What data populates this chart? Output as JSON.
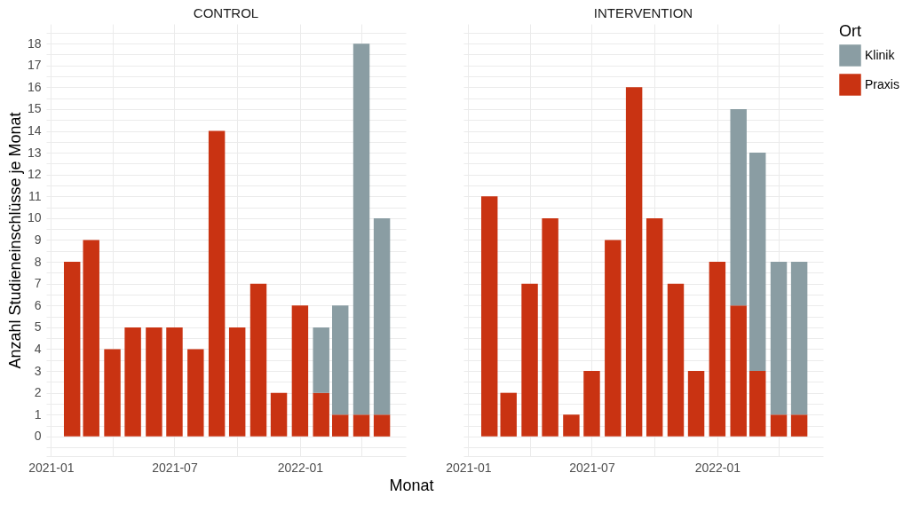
{
  "chart_data": [
    {
      "type": "bar",
      "title": "CONTROL",
      "xlabel": "Monat",
      "ylabel": "Anzahl Studieneinschlüsse je Monat",
      "stacked": true,
      "grid": true,
      "x": [
        "2021-02",
        "2021-03",
        "2021-04",
        "2021-05",
        "2021-06",
        "2021-07",
        "2021-08",
        "2021-09",
        "2021-10",
        "2021-11",
        "2021-12",
        "2022-01",
        "2022-02",
        "2022-03",
        "2022-04",
        "2022-05"
      ],
      "xlim": [
        "2020-12-25",
        "2022-06-05"
      ],
      "xticks": [
        "2021-01",
        {
          "value": "2021-04",
          "label": null
        },
        "2021-07",
        {
          "value": "2021-10",
          "label": null
        },
        "2022-01",
        {
          "value": "2022-04",
          "label": null
        }
      ],
      "ylim": [
        -0.9,
        18.9
      ],
      "yticks": [
        {
          "value": -0.5,
          "label": null
        },
        0,
        {
          "value": 0.5,
          "label": null
        },
        1,
        {
          "value": 1.5,
          "label": null
        },
        2,
        {
          "value": 2.5,
          "label": null
        },
        3,
        {
          "value": 3.5,
          "label": null
        },
        4,
        {
          "value": 4.5,
          "label": null
        },
        5,
        {
          "value": 5.5,
          "label": null
        },
        6,
        {
          "value": 6.5,
          "label": null
        },
        7,
        {
          "value": 7.5,
          "label": null
        },
        8,
        {
          "value": 8.5,
          "label": null
        },
        9,
        {
          "value": 9.5,
          "label": null
        },
        10,
        {
          "value": 10.5,
          "label": null
        },
        11,
        {
          "value": 11.5,
          "label": null
        },
        12,
        {
          "value": 12.5,
          "label": null
        },
        13,
        {
          "value": 13.5,
          "label": null
        },
        14,
        {
          "value": 14.5,
          "label": null
        },
        15,
        {
          "value": 15.5,
          "label": null
        },
        16,
        {
          "value": 16.5,
          "label": null
        },
        17,
        {
          "value": 17.5,
          "label": null
        },
        18,
        {
          "value": 18.5,
          "label": null
        }
      ],
      "series": [
        {
          "color": "#c93312",
          "values": [
            8,
            9,
            4,
            5,
            5,
            5,
            4,
            14,
            5,
            7,
            2,
            6,
            2,
            1,
            1,
            1
          ]
        },
        {
          "color": "#8a9da3",
          "values": [
            null,
            null,
            null,
            null,
            null,
            null,
            null,
            null,
            null,
            null,
            null,
            null,
            3,
            5,
            17,
            9
          ]
        }
      ]
    },
    {
      "type": "bar",
      "title": "INTERVENTION",
      "stacked": true,
      "grid": true,
      "tick_labels": "x",
      "legend": "right",
      "legend_title": "Ort",
      "x": [
        "2021-02",
        "2021-03",
        "2021-04",
        "2021-05",
        "2021-06",
        "2021-07",
        "2021-08",
        "2021-09",
        "2021-10",
        "2021-11",
        "2021-12",
        "2022-01",
        "2022-02",
        "2022-03",
        "2022-04",
        "2022-05"
      ],
      "xlim": [
        "2020-12-25",
        "2022-06-05"
      ],
      "xticks": [
        "2021-01",
        {
          "value": "2021-04",
          "label": null
        },
        "2021-07",
        {
          "value": "2021-10",
          "label": null
        },
        "2022-01",
        {
          "value": "2022-04",
          "label": null
        }
      ],
      "ylim": [
        -0.9,
        18.9
      ],
      "yticks": [
        {
          "value": -0.5,
          "label": null
        },
        0,
        {
          "value": 0.5,
          "label": null
        },
        1,
        {
          "value": 1.5,
          "label": null
        },
        2,
        {
          "value": 2.5,
          "label": null
        },
        3,
        {
          "value": 3.5,
          "label": null
        },
        4,
        {
          "value": 4.5,
          "label": null
        },
        5,
        {
          "value": 5.5,
          "label": null
        },
        6,
        {
          "value": 6.5,
          "label": null
        },
        7,
        {
          "value": 7.5,
          "label": null
        },
        8,
        {
          "value": 8.5,
          "label": null
        },
        9,
        {
          "value": 9.5,
          "label": null
        },
        10,
        {
          "value": 10.5,
          "label": null
        },
        11,
        {
          "value": 11.5,
          "label": null
        },
        12,
        {
          "value": 12.5,
          "label": null
        },
        13,
        {
          "value": 13.5,
          "label": null
        },
        14,
        {
          "value": 14.5,
          "label": null
        },
        15,
        {
          "value": 15.5,
          "label": null
        },
        16,
        {
          "value": 16.5,
          "label": null
        },
        17,
        {
          "value": 17.5,
          "label": null
        },
        18,
        {
          "value": 18.5,
          "label": null
        }
      ],
      "series": [
        {
          "name": "Praxis",
          "color": "#c93312",
          "values": [
            11,
            2,
            7,
            10,
            1,
            3,
            9,
            16,
            10,
            7,
            3,
            8,
            6,
            3,
            1,
            1
          ]
        },
        {
          "name": "Klinik",
          "color": "#8a9da3",
          "values": [
            null,
            null,
            null,
            null,
            null,
            null,
            null,
            null,
            null,
            null,
            null,
            null,
            9,
            10,
            7,
            7
          ]
        }
      ]
    }
  ]
}
